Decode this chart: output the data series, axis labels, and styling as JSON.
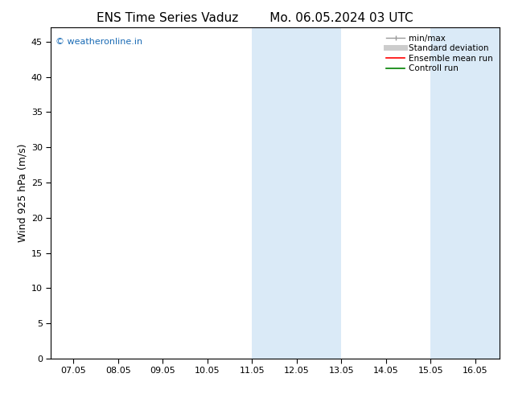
{
  "title_left": "ENS Time Series Vaduz",
  "title_right": "Mo. 06.05.2024 03 UTC",
  "ylabel": "Wind 925 hPa (m/s)",
  "background_color": "#ffffff",
  "plot_bg_color": "#ffffff",
  "xlim_min": 6.5,
  "xlim_max": 16.55,
  "ylim_min": 0,
  "ylim_max": 47,
  "yticks": [
    0,
    5,
    10,
    15,
    20,
    25,
    30,
    35,
    40,
    45
  ],
  "xtick_labels": [
    "07.05",
    "08.05",
    "09.05",
    "10.05",
    "11.05",
    "12.05",
    "13.05",
    "14.05",
    "15.05",
    "16.05"
  ],
  "xtick_positions": [
    7.0,
    8.0,
    9.0,
    10.0,
    11.0,
    12.0,
    13.0,
    14.0,
    15.0,
    16.0
  ],
  "shaded_bands": [
    {
      "x_start": 11.0,
      "x_end": 13.0,
      "color": "#daeaf7"
    },
    {
      "x_start": 15.0,
      "x_end": 16.55,
      "color": "#daeaf7"
    }
  ],
  "watermark_text": "© weatheronline.in",
  "watermark_color": "#1a6bb5",
  "legend_minmax_color": "#999999",
  "legend_stddev_color": "#cccccc",
  "legend_ensemble_color": "#ff0000",
  "legend_control_color": "#008000",
  "title_fontsize": 11,
  "ylabel_fontsize": 9,
  "tick_fontsize": 8,
  "legend_fontsize": 7.5,
  "watermark_fontsize": 8
}
